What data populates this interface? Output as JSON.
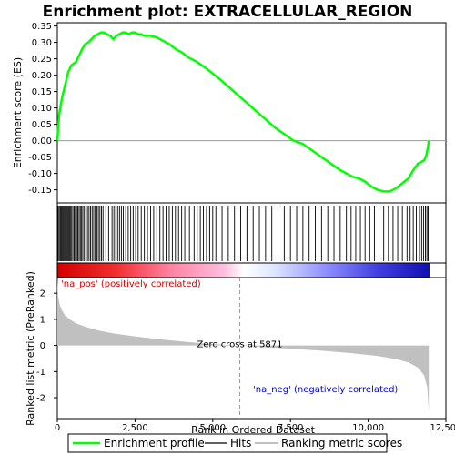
{
  "chart_data": {
    "type": "line",
    "title": "Enrichment plot: EXTRACELLULAR_REGION",
    "top_panel": {
      "ylabel": "Enrichment score (ES)",
      "ylim": [
        -0.19,
        0.36
      ],
      "yticks": [
        0.35,
        0.3,
        0.25,
        0.2,
        0.15,
        0.1,
        0.05,
        0.0,
        -0.05,
        -0.1,
        -0.15
      ],
      "ytick_labels": [
        "0.35",
        "0.30",
        "0.25",
        "0.20",
        "0.15",
        "0.10",
        "0.05",
        "0.00",
        "-0.05",
        "-0.10",
        "-0.15"
      ],
      "series": [
        {
          "name": "Enrichment profile",
          "color": "#00ff00",
          "x": [
            0,
            60,
            150,
            250,
            350,
            450,
            600,
            700,
            800,
            900,
            1000,
            1100,
            1200,
            1300,
            1400,
            1500,
            1600,
            1700,
            1800,
            1900,
            2000,
            2100,
            2200,
            2300,
            2400,
            2500,
            2600,
            2700,
            2800,
            3000,
            3200,
            3400,
            3600,
            3800,
            4000,
            4200,
            4500,
            4800,
            5000,
            5200,
            5500,
            5800,
            6100,
            6400,
            6700,
            7000,
            7300,
            7600,
            7900,
            8200,
            8500,
            8800,
            9100,
            9300,
            9500,
            9700,
            9900,
            10100,
            10300,
            10500,
            10700,
            10900,
            11100,
            11300,
            11450,
            11600,
            11700,
            11800,
            11870,
            11920,
            11950
          ],
          "y": [
            0.0,
            0.08,
            0.13,
            0.17,
            0.21,
            0.23,
            0.24,
            0.26,
            0.28,
            0.295,
            0.3,
            0.31,
            0.32,
            0.325,
            0.33,
            0.33,
            0.325,
            0.32,
            0.31,
            0.32,
            0.325,
            0.33,
            0.33,
            0.325,
            0.33,
            0.33,
            0.325,
            0.325,
            0.32,
            0.32,
            0.315,
            0.305,
            0.295,
            0.28,
            0.27,
            0.255,
            0.24,
            0.22,
            0.205,
            0.19,
            0.165,
            0.14,
            0.115,
            0.09,
            0.065,
            0.04,
            0.02,
            0.0,
            -0.01,
            -0.03,
            -0.05,
            -0.07,
            -0.09,
            -0.1,
            -0.11,
            -0.115,
            -0.125,
            -0.14,
            -0.15,
            -0.155,
            -0.155,
            -0.145,
            -0.13,
            -0.115,
            -0.09,
            -0.07,
            -0.065,
            -0.06,
            -0.045,
            -0.02,
            0.0
          ]
        }
      ]
    },
    "hits_panel": {
      "positions": [
        20,
        55,
        90,
        120,
        150,
        180,
        210,
        240,
        270,
        300,
        330,
        360,
        390,
        420,
        460,
        500,
        540,
        580,
        620,
        660,
        700,
        740,
        780,
        820,
        870,
        920,
        970,
        1020,
        1070,
        1120,
        1170,
        1220,
        1270,
        1320,
        1370,
        1420,
        1470,
        1560,
        1650,
        1760,
        1820,
        1880,
        1940,
        2000,
        2060,
        2120,
        2200,
        2280,
        2360,
        2440,
        2520,
        2600,
        2700,
        2800,
        2900,
        3000,
        3100,
        3200,
        3300,
        3400,
        3500,
        3600,
        3700,
        3800,
        3900,
        4000,
        4100,
        4250,
        4400,
        4500,
        4600,
        4700,
        4800,
        4900,
        5000,
        5100,
        5300,
        5500,
        5700,
        5900,
        6100,
        6300,
        6500,
        6700,
        6900,
        7100,
        7300,
        7500,
        7700,
        7900,
        8100,
        8300,
        8500,
        8700,
        8900,
        9100,
        9300,
        9450,
        9600,
        9750,
        9900,
        10050,
        10200,
        10350,
        10500,
        10650,
        10800,
        10950,
        11100,
        11250,
        11350,
        11450,
        11550,
        11650,
        11720,
        11780,
        11840,
        11890,
        11930
      ]
    },
    "bottom_panel": {
      "ylabel": "Ranked list metric (PreRanked)",
      "xlabel": "Rank in Ordered Dataset",
      "ylim": [
        -2.8,
        2.6
      ],
      "yticks": [
        2,
        1,
        0,
        -1,
        -2
      ],
      "ytick_labels": [
        "2",
        "1",
        "0",
        "-1",
        "-2"
      ],
      "xlim": [
        0,
        12500
      ],
      "xticks": [
        0,
        2500,
        5000,
        7500,
        10000,
        12500
      ],
      "xtick_labels": [
        "0",
        "2,500",
        "5,000",
        "7,500",
        "10,000",
        "12,500"
      ],
      "fill_color": "#c0c0c0",
      "metric_x": [
        0,
        30,
        80,
        150,
        250,
        400,
        600,
        900,
        1300,
        1800,
        2500,
        3200,
        4000,
        4800,
        5500,
        5871,
        6500,
        7500,
        8500,
        9500,
        10300,
        10900,
        11300,
        11600,
        11800,
        11900,
        11950
      ],
      "metric_y": [
        2.6,
        1.85,
        1.55,
        1.35,
        1.15,
        1.0,
        0.85,
        0.72,
        0.58,
        0.46,
        0.35,
        0.25,
        0.15,
        0.07,
        0.02,
        0.0,
        -0.05,
        -0.12,
        -0.2,
        -0.3,
        -0.4,
        -0.52,
        -0.65,
        -0.85,
        -1.15,
        -1.6,
        -2.5
      ],
      "zero_cross_x": 5871,
      "zero_cross_label": "Zero cross at 5871",
      "pos_label": "'na_pos' (positively correlated)",
      "neg_label": "'na_neg' (negatively correlated)",
      "pos_color": "#cc0000",
      "neg_color": "#0000cc"
    },
    "legend": {
      "position": "bottom",
      "entries": [
        {
          "label": "Enrichment profile",
          "color": "#00ff00"
        },
        {
          "label": "Hits",
          "color": "#000000"
        },
        {
          "label": "Ranking metric scores",
          "color": "#c0c0c0"
        }
      ]
    }
  }
}
